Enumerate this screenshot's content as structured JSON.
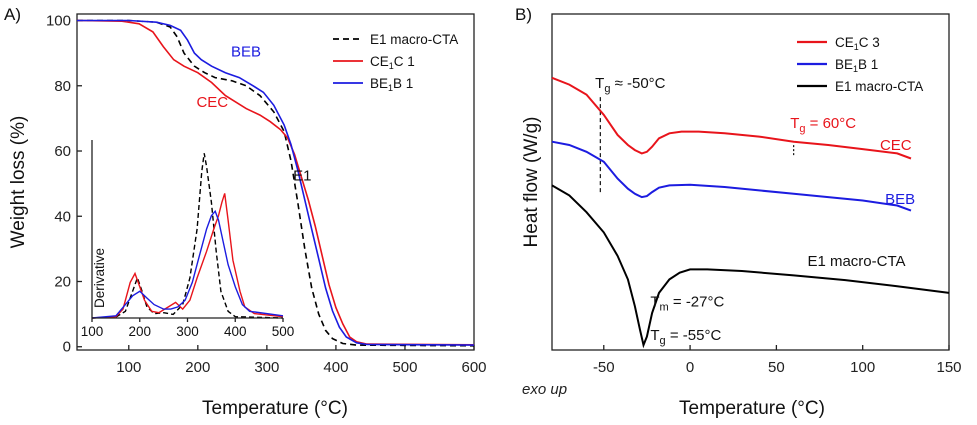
{
  "chart_data": [
    {
      "id": "A",
      "type": "line",
      "panel_label": "A)",
      "xlabel": "Temperature (°C)",
      "ylabel": "Weight loss (%)",
      "xlim": [
        25,
        600
      ],
      "ylim": [
        -1,
        102
      ],
      "xticks": [
        100,
        200,
        300,
        400,
        500,
        600
      ],
      "yticks": [
        0,
        20,
        40,
        60,
        80,
        100
      ],
      "grid": false,
      "legend": {
        "position": "top-right",
        "entries": [
          {
            "html": "E1 macro-CTA",
            "color": "#000000",
            "dash": "6,4"
          },
          {
            "html": "CE<tspan font-size='9' dy='3'>1</tspan><tspan dy='-3'>C 1</tspan>",
            "color": "#e8141b",
            "dash": ""
          },
          {
            "html": "BE<tspan font-size='9' dy='3'>1</tspan><tspan dy='-3'>B 1</tspan>",
            "color": "#1c1ce0",
            "dash": ""
          }
        ]
      },
      "series": [
        {
          "name": "E1 macro-CTA",
          "color": "#000000",
          "dash": "6,4",
          "points": [
            [
              25,
              100
            ],
            [
              100,
              100
            ],
            [
              140,
              99.5
            ],
            [
              160,
              98
            ],
            [
              170,
              95
            ],
            [
              180,
              90
            ],
            [
              195,
              86
            ],
            [
              210,
              84
            ],
            [
              225,
              82.5
            ],
            [
              250,
              81.5
            ],
            [
              270,
              80
            ],
            [
              290,
              77
            ],
            [
              310,
              72
            ],
            [
              325,
              66
            ],
            [
              335,
              57
            ],
            [
              345,
              44
            ],
            [
              355,
              30
            ],
            [
              365,
              18
            ],
            [
              375,
              10
            ],
            [
              385,
              5
            ],
            [
              395,
              2.5
            ],
            [
              410,
              1
            ],
            [
              430,
              0.5
            ],
            [
              600,
              0.3
            ]
          ]
        },
        {
          "name": "CE1C 1",
          "color": "#e8141b",
          "dash": "",
          "points": [
            [
              25,
              100
            ],
            [
              90,
              99.8
            ],
            [
              115,
              99
            ],
            [
              135,
              96.5
            ],
            [
              150,
              92
            ],
            [
              165,
              88
            ],
            [
              180,
              86
            ],
            [
              200,
              84
            ],
            [
              220,
              81
            ],
            [
              240,
              77
            ],
            [
              255,
              75
            ],
            [
              270,
              73
            ],
            [
              290,
              71
            ],
            [
              305,
              69
            ],
            [
              320,
              66.5
            ],
            [
              330,
              64
            ],
            [
              340,
              59
            ],
            [
              350,
              52
            ],
            [
              360,
              45
            ],
            [
              370,
              37
            ],
            [
              380,
              28
            ],
            [
              390,
              19
            ],
            [
              400,
              12
            ],
            [
              410,
              7
            ],
            [
              420,
              3
            ],
            [
              430,
              1.5
            ],
            [
              445,
              0.8
            ],
            [
              600,
              0.6
            ]
          ]
        },
        {
          "name": "BE1B 1",
          "color": "#1c1ce0",
          "dash": "",
          "points": [
            [
              25,
              100
            ],
            [
              100,
              100
            ],
            [
              140,
              99.5
            ],
            [
              160,
              98.5
            ],
            [
              175,
              97
            ],
            [
              185,
              94
            ],
            [
              195,
              90
            ],
            [
              205,
              88
            ],
            [
              220,
              86
            ],
            [
              240,
              84
            ],
            [
              260,
              82.5
            ],
            [
              280,
              80
            ],
            [
              295,
              78
            ],
            [
              310,
              74
            ],
            [
              325,
              68
            ],
            [
              335,
              62
            ],
            [
              345,
              54
            ],
            [
              355,
              45
            ],
            [
              365,
              36
            ],
            [
              375,
              27
            ],
            [
              385,
              18
            ],
            [
              395,
              11
            ],
            [
              405,
              6
            ],
            [
              415,
              3
            ],
            [
              430,
              1.2
            ],
            [
              445,
              0.7
            ],
            [
              600,
              0.5
            ]
          ]
        }
      ],
      "annotations": [
        {
          "text": "BEB",
          "x": 248,
          "y": 89,
          "color": "#1c1ce0"
        },
        {
          "text": "CEC",
          "x": 198,
          "y": 73.5,
          "color": "#e8141b"
        },
        {
          "text": "E1",
          "x": 338,
          "y": 51,
          "color": "#111111"
        }
      ],
      "inset": {
        "ylabel": "Derivative",
        "xlim": [
          100,
          500
        ],
        "xticks": [
          100,
          200,
          300,
          400,
          500
        ],
        "series": [
          {
            "name": "E1 macro-CTA",
            "color": "#000000",
            "dash": "5,3",
            "points": [
              [
                100,
                0
              ],
              [
                150,
                0.2
              ],
              [
                170,
                1.5
              ],
              [
                185,
                6
              ],
              [
                195,
                9
              ],
              [
                205,
                6
              ],
              [
                215,
                2.5
              ],
              [
                230,
                1
              ],
              [
                250,
                1.2
              ],
              [
                270,
                0.8
              ],
              [
                290,
                3
              ],
              [
                305,
                9
              ],
              [
                320,
                20
              ],
              [
                330,
                33
              ],
              [
                335,
                37
              ],
              [
                340,
                34
              ],
              [
                350,
                26
              ],
              [
                360,
                15
              ],
              [
                370,
                6
              ],
              [
                385,
                1.5
              ],
              [
                400,
                0.3
              ],
              [
                500,
                0
              ]
            ]
          },
          {
            "name": "CE1C 1",
            "color": "#e8141b",
            "dash": "",
            "points": [
              [
                100,
                0
              ],
              [
                150,
                0.3
              ],
              [
                165,
                2
              ],
              [
                180,
                8
              ],
              [
                190,
                10
              ],
              [
                200,
                7
              ],
              [
                210,
                4
              ],
              [
                225,
                1.5
              ],
              [
                240,
                1.2
              ],
              [
                260,
                2.5
              ],
              [
                275,
                3.5
              ],
              [
                290,
                2
              ],
              [
                305,
                4
              ],
              [
                320,
                9
              ],
              [
                340,
                15
              ],
              [
                355,
                20
              ],
              [
                365,
                23
              ],
              [
                372,
                26
              ],
              [
                378,
                28
              ],
              [
                385,
                22
              ],
              [
                395,
                13
              ],
              [
                410,
                6
              ],
              [
                420,
                2.5
              ],
              [
                440,
                1
              ],
              [
                500,
                0.3
              ]
            ]
          },
          {
            "name": "BE1B 1",
            "color": "#1c1ce0",
            "dash": "",
            "points": [
              [
                100,
                0
              ],
              [
                150,
                0.5
              ],
              [
                170,
                3
              ],
              [
                185,
                5
              ],
              [
                200,
                6
              ],
              [
                215,
                4.5
              ],
              [
                230,
                3
              ],
              [
                250,
                2
              ],
              [
                265,
                2
              ],
              [
                280,
                2.5
              ],
              [
                295,
                4
              ],
              [
                310,
                8
              ],
              [
                325,
                14
              ],
              [
                340,
                20
              ],
              [
                350,
                23
              ],
              [
                358,
                24
              ],
              [
                365,
                22
              ],
              [
                375,
                17
              ],
              [
                385,
                12
              ],
              [
                400,
                7
              ],
              [
                415,
                3
              ],
              [
                430,
                1.5
              ],
              [
                500,
                0.5
              ]
            ]
          }
        ]
      }
    },
    {
      "id": "B",
      "type": "line",
      "panel_label": "B)",
      "xlabel": "Temperature (°C)",
      "ylabel": "Heat flow (W/g)",
      "xsublabel": "exo up",
      "xlim": [
        -80,
        150
      ],
      "xticks": [
        -50,
        0,
        50,
        100,
        150
      ],
      "ylim": [
        0,
        100
      ],
      "grid": false,
      "legend": {
        "position": "top-right",
        "entries": [
          {
            "html": "CE<tspan font-size='9' dy='3'>1</tspan><tspan dy='-3'>C 3</tspan>",
            "color": "#e8141b"
          },
          {
            "html": "BE<tspan font-size='9' dy='3'>1</tspan><tspan dy='-3'>B 1</tspan>",
            "color": "#1c1ce0"
          },
          {
            "html": "E1 macro-CTA",
            "color": "#000000"
          }
        ]
      },
      "series": [
        {
          "name": "CE1C 3",
          "color": "#e8141b",
          "points": [
            [
              -80,
              81
            ],
            [
              -70,
              79
            ],
            [
              -60,
              76
            ],
            [
              -50,
              70
            ],
            [
              -42,
              64
            ],
            [
              -36,
              61
            ],
            [
              -32,
              59.5
            ],
            [
              -28,
              58.5
            ],
            [
              -25,
              59
            ],
            [
              -22,
              60.5
            ],
            [
              -18,
              63
            ],
            [
              -12,
              64.5
            ],
            [
              -5,
              65
            ],
            [
              5,
              65
            ],
            [
              20,
              64.5
            ],
            [
              40,
              63.5
            ],
            [
              60,
              62
            ],
            [
              80,
              61
            ],
            [
              100,
              59.8
            ],
            [
              120,
              58.5
            ],
            [
              128,
              57
            ]
          ]
        },
        {
          "name": "BE1B 1",
          "color": "#1c1ce0",
          "points": [
            [
              -80,
              62
            ],
            [
              -70,
              61
            ],
            [
              -60,
              59
            ],
            [
              -50,
              56
            ],
            [
              -42,
              51
            ],
            [
              -36,
              48
            ],
            [
              -32,
              46.5
            ],
            [
              -28,
              45.5
            ],
            [
              -25,
              45.8
            ],
            [
              -22,
              47
            ],
            [
              -18,
              48.3
            ],
            [
              -12,
              49
            ],
            [
              0,
              49.2
            ],
            [
              20,
              48.5
            ],
            [
              40,
              47.5
            ],
            [
              60,
              46.5
            ],
            [
              80,
              45.5
            ],
            [
              100,
              44.5
            ],
            [
              120,
              43
            ],
            [
              128,
              41.5
            ]
          ]
        },
        {
          "name": "E1 macro-CTA",
          "color": "#000000",
          "points": [
            [
              -80,
              49
            ],
            [
              -70,
              46
            ],
            [
              -60,
              41
            ],
            [
              -50,
              35
            ],
            [
              -42,
              28
            ],
            [
              -36,
              21
            ],
            [
              -32,
              13
            ],
            [
              -29,
              6
            ],
            [
              -27,
              1.5
            ],
            [
              -25,
              4
            ],
            [
              -22,
              11
            ],
            [
              -18,
              17
            ],
            [
              -12,
              21
            ],
            [
              -6,
              23
            ],
            [
              0,
              24
            ],
            [
              10,
              24
            ],
            [
              30,
              23.5
            ],
            [
              60,
              22.2
            ],
            [
              90,
              20.8
            ],
            [
              120,
              19
            ],
            [
              150,
              17
            ]
          ]
        }
      ],
      "markers": [
        {
          "x": -52,
          "y_from": 47,
          "y_to": 76,
          "color": "#111111",
          "dash": "4,3"
        },
        {
          "x": 60,
          "y_from": 58,
          "y_to": 61.5,
          "color": "#111111",
          "dash": "2,2"
        }
      ],
      "annotations": [
        {
          "html": "T<tspan font-size='11' dy='4'>g</tspan><tspan dy='-4'> ≈ -50°C</tspan>",
          "x": -55,
          "y": 78,
          "color": "#111111"
        },
        {
          "html": "T<tspan font-size='11' dy='4'>g</tspan><tspan dy='-4'> = 60°C</tspan>",
          "x": 58,
          "y": 66,
          "color": "#e8141b"
        },
        {
          "html": "CEC",
          "x": 110,
          "y": 59.5,
          "color": "#e8141b"
        },
        {
          "html": "BEB",
          "x": 113,
          "y": 43.5,
          "color": "#1c1ce0"
        },
        {
          "html": "E1 macro-CTA",
          "x": 68,
          "y": 25,
          "color": "#111111"
        },
        {
          "html": "T<tspan font-size='11' dy='4'>m</tspan><tspan dy='-4'> = -27°C</tspan>",
          "x": -23,
          "y": 13,
          "color": "#111111"
        },
        {
          "html": "T<tspan font-size='11' dy='4'>g</tspan><tspan dy='-4'> = -55°C</tspan>",
          "x": -23,
          "y": 3,
          "color": "#111111"
        }
      ]
    }
  ]
}
